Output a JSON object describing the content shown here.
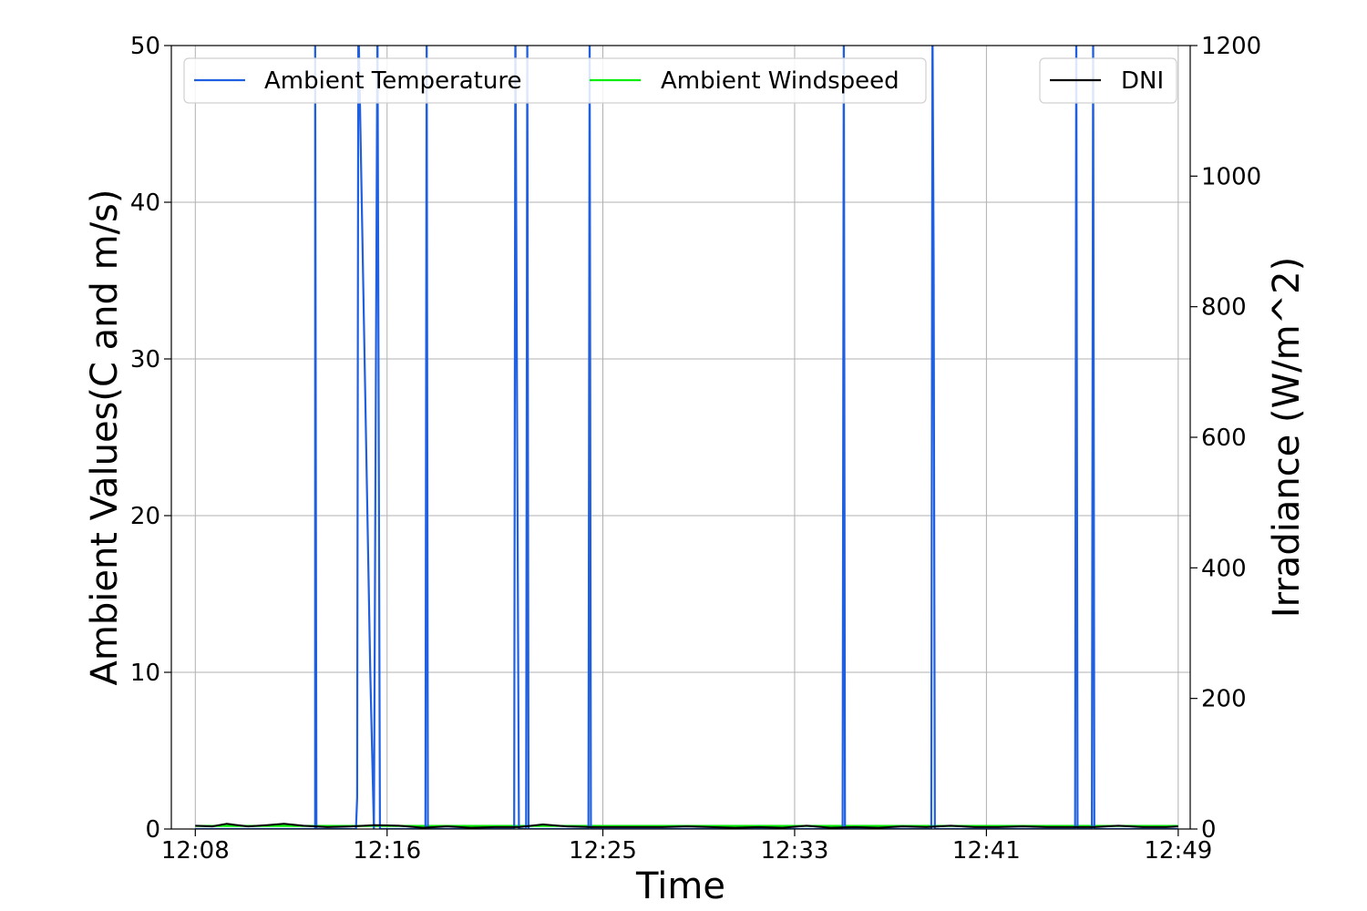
{
  "chart_data": {
    "type": "line",
    "title": "",
    "xlabel": "Time",
    "ylabel_left": "Ambient Values(C and m/s)",
    "ylabel_right": "Irradiance (W/m^2)",
    "x_ticks": [
      "12:08",
      "12:16",
      "12:25",
      "12:33",
      "12:41",
      "12:49"
    ],
    "x_range_minutes": [
      7.0,
      49.5
    ],
    "y_left_range": [
      0,
      50
    ],
    "y_left_ticks": [
      0,
      10,
      20,
      30,
      40,
      50
    ],
    "y_right_range": [
      0,
      1200
    ],
    "y_right_ticks": [
      0,
      200,
      400,
      600,
      800,
      1000,
      1200
    ],
    "grid": true,
    "legend_left": [
      "Ambient Temperature",
      "Ambient Windspeed"
    ],
    "legend_right": [
      "DNI"
    ],
    "colors": {
      "Ambient Temperature": "#1f5fe0",
      "Ambient Windspeed": "#00ee00",
      "DNI": "#000000",
      "grid": "#b0b0b0"
    },
    "series": [
      {
        "name": "Ambient Temperature",
        "axis": "left",
        "points": [
          [
            8.0,
            0
          ],
          [
            13.0,
            0
          ],
          [
            13.0,
            52
          ],
          [
            13.05,
            0
          ],
          [
            14.7,
            0
          ],
          [
            14.75,
            2
          ],
          [
            14.8,
            52
          ],
          [
            15.3,
            10
          ],
          [
            15.45,
            0
          ],
          [
            15.6,
            52
          ],
          [
            15.7,
            0
          ],
          [
            17.6,
            0
          ],
          [
            17.65,
            52
          ],
          [
            17.7,
            0
          ],
          [
            21.3,
            0
          ],
          [
            21.35,
            52
          ],
          [
            21.5,
            0
          ],
          [
            21.8,
            0
          ],
          [
            21.85,
            52
          ],
          [
            21.9,
            0
          ],
          [
            24.4,
            0
          ],
          [
            24.45,
            52
          ],
          [
            24.5,
            0
          ],
          [
            35.0,
            0
          ],
          [
            35.05,
            52
          ],
          [
            35.1,
            0
          ],
          [
            38.7,
            0
          ],
          [
            38.75,
            52
          ],
          [
            38.8,
            36
          ],
          [
            38.85,
            0
          ],
          [
            44.7,
            0
          ],
          [
            44.75,
            52
          ],
          [
            44.8,
            0
          ],
          [
            45.4,
            0
          ],
          [
            45.45,
            52
          ],
          [
            45.5,
            0
          ],
          [
            49.0,
            0
          ]
        ]
      },
      {
        "name": "Ambient Windspeed",
        "axis": "left",
        "points": [
          [
            8.0,
            0.2
          ],
          [
            49.0,
            0.2
          ]
        ]
      },
      {
        "name": "DNI",
        "axis": "right",
        "points": [
          [
            8.0,
            5
          ],
          [
            8.7,
            4
          ],
          [
            9.3,
            8
          ],
          [
            10.2,
            4
          ],
          [
            11.0,
            6
          ],
          [
            11.7,
            8
          ],
          [
            12.5,
            5
          ],
          [
            13.5,
            3
          ],
          [
            14.5,
            4
          ],
          [
            15.5,
            6
          ],
          [
            16.5,
            5
          ],
          [
            17.5,
            2
          ],
          [
            18.5,
            4
          ],
          [
            19.5,
            2
          ],
          [
            20.5,
            3
          ],
          [
            21.5,
            3
          ],
          [
            22.5,
            7
          ],
          [
            23.5,
            4
          ],
          [
            24.5,
            3
          ],
          [
            25.5,
            3
          ],
          [
            26.5,
            3
          ],
          [
            27.5,
            3
          ],
          [
            28.5,
            4
          ],
          [
            29.5,
            3
          ],
          [
            30.5,
            2
          ],
          [
            31.5,
            3
          ],
          [
            32.5,
            2
          ],
          [
            33.5,
            5
          ],
          [
            34.5,
            2
          ],
          [
            35.5,
            3
          ],
          [
            36.5,
            2
          ],
          [
            37.5,
            4
          ],
          [
            38.5,
            3
          ],
          [
            39.5,
            5
          ],
          [
            40.5,
            3
          ],
          [
            41.5,
            3
          ],
          [
            42.5,
            4
          ],
          [
            43.5,
            3
          ],
          [
            44.5,
            3
          ],
          [
            45.5,
            3
          ],
          [
            46.5,
            5
          ],
          [
            47.5,
            3
          ],
          [
            48.5,
            3
          ],
          [
            49.0,
            4
          ]
        ]
      }
    ]
  }
}
